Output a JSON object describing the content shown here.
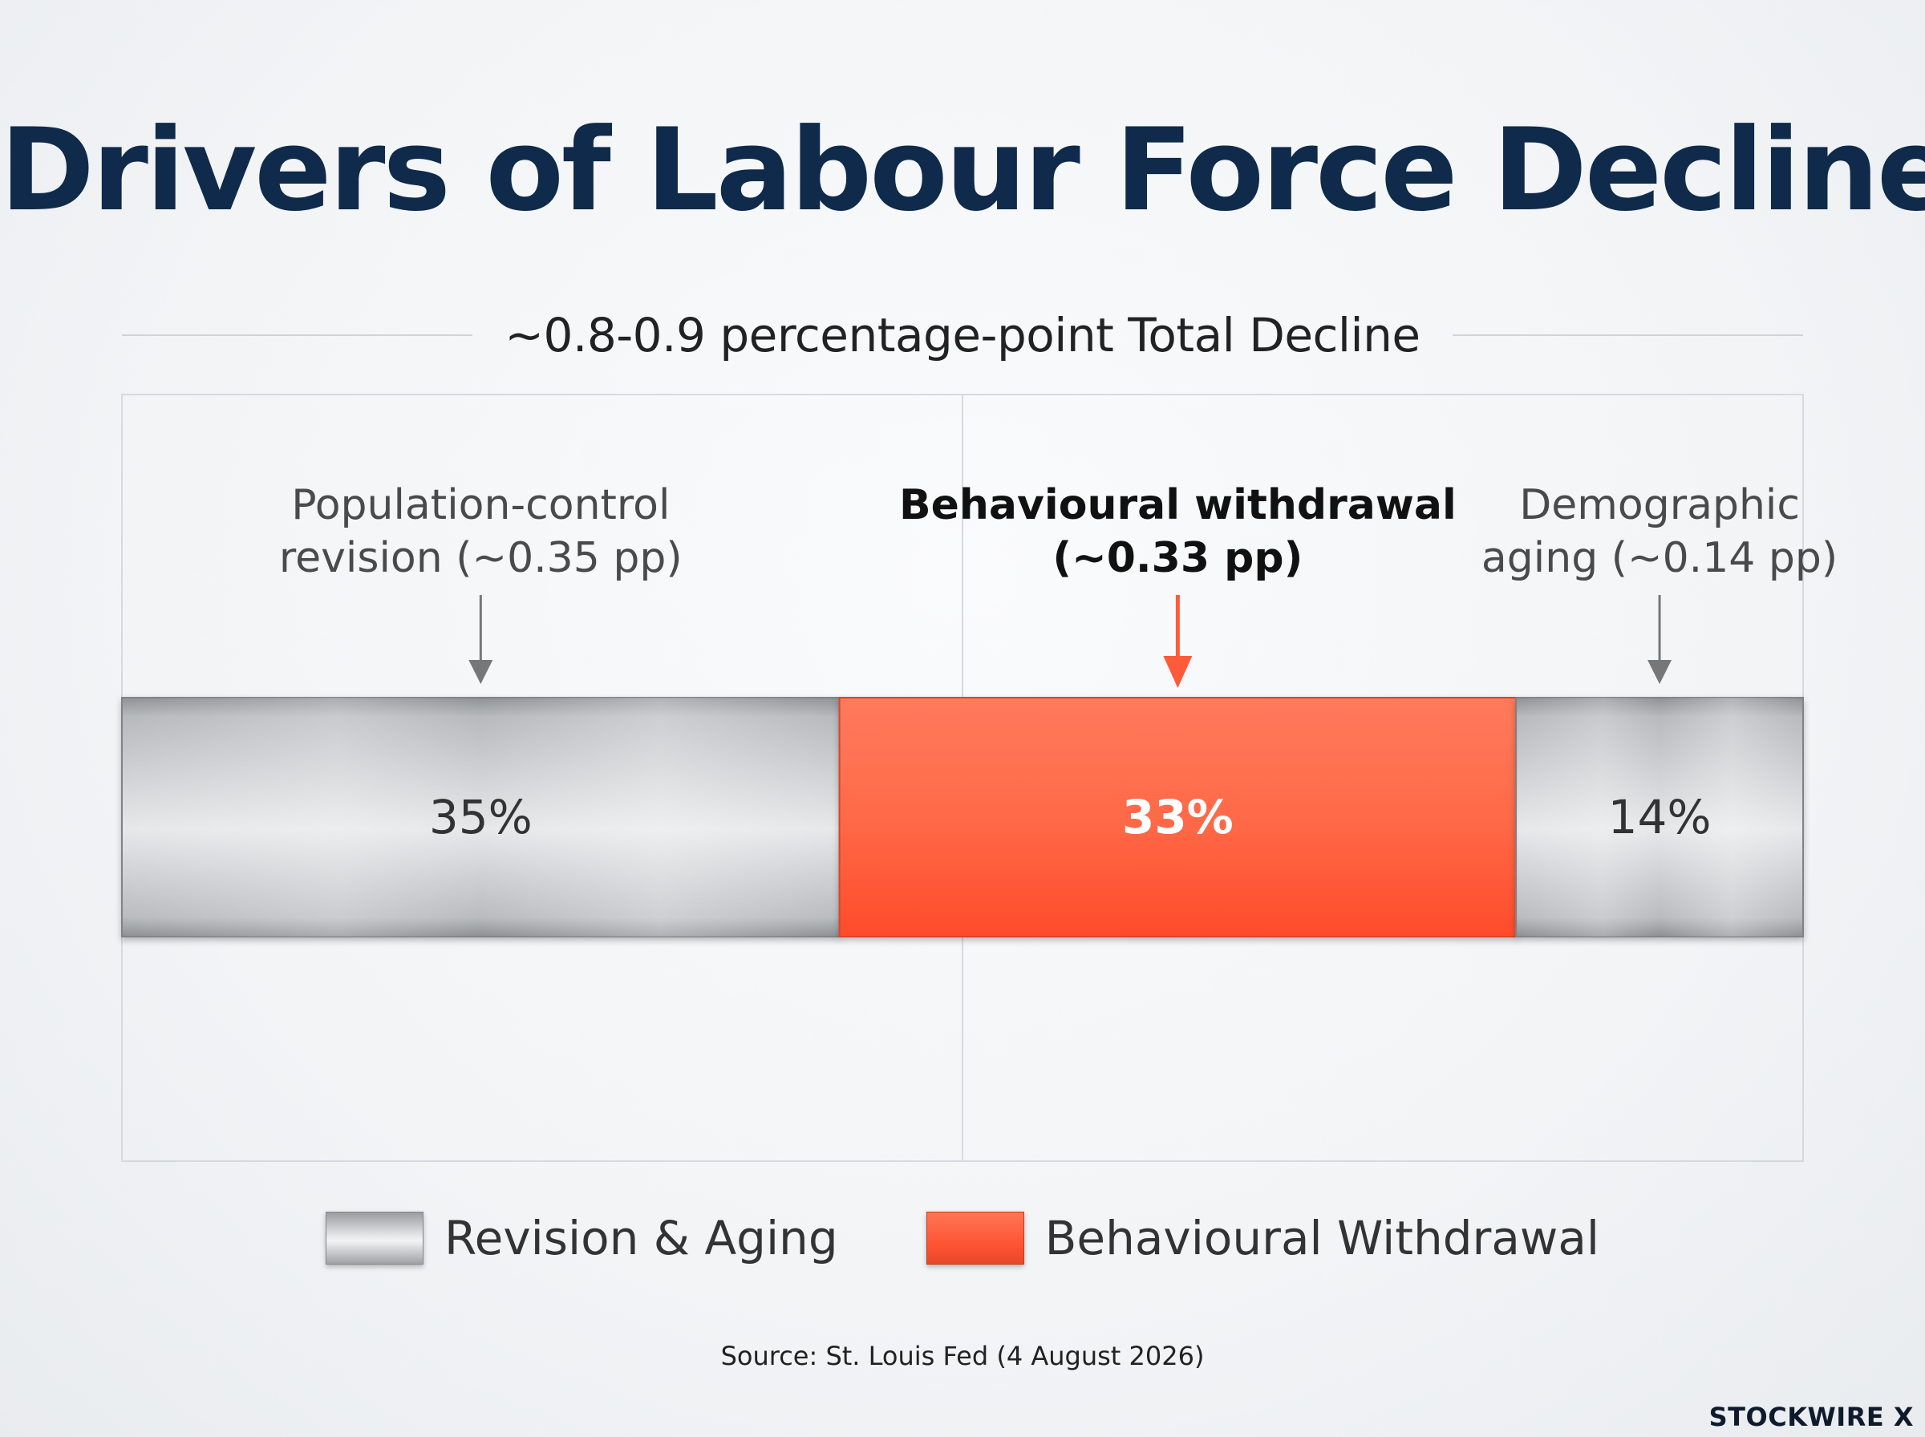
{
  "chart_data": {
    "type": "bar",
    "orientation": "horizontal-stacked",
    "title": "Drivers of Labour Force Decline",
    "subtitle": "~0.8-0.9 percentage-point Total Decline",
    "segments": [
      {
        "annotation_lines": [
          "Population-control",
          "revision (~0.35 pp)"
        ],
        "pp": 0.35,
        "value": 35,
        "value_label": "35%",
        "group": "Revision & Aging",
        "highlight": false
      },
      {
        "annotation_lines": [
          "Behavioural withdrawal",
          "(~0.33 pp)"
        ],
        "pp": 0.33,
        "value": 33,
        "value_label": "33%",
        "group": "Behavioural Withdrawal",
        "highlight": true
      },
      {
        "annotation_lines": [
          "Demographic",
          "aging (~0.14 pp)"
        ],
        "pp": 0.14,
        "value": 14,
        "value_label": "14%",
        "group": "Revision & Aging",
        "highlight": false
      }
    ],
    "legend": [
      {
        "label": "Revision & Aging",
        "color": "#c2c5c8"
      },
      {
        "label": "Behavioural Withdrawal",
        "color": "#ff5a3a"
      }
    ],
    "legend_position": "bottom",
    "grid": true,
    "colors": {
      "grey": "#c2c5c8",
      "orange": "#ff5a3a",
      "title": "#0f2a4a"
    }
  },
  "footer": {
    "source": "Source: St. Louis Fed (4 August 2026)",
    "brand": "STOCKWIRE X"
  }
}
